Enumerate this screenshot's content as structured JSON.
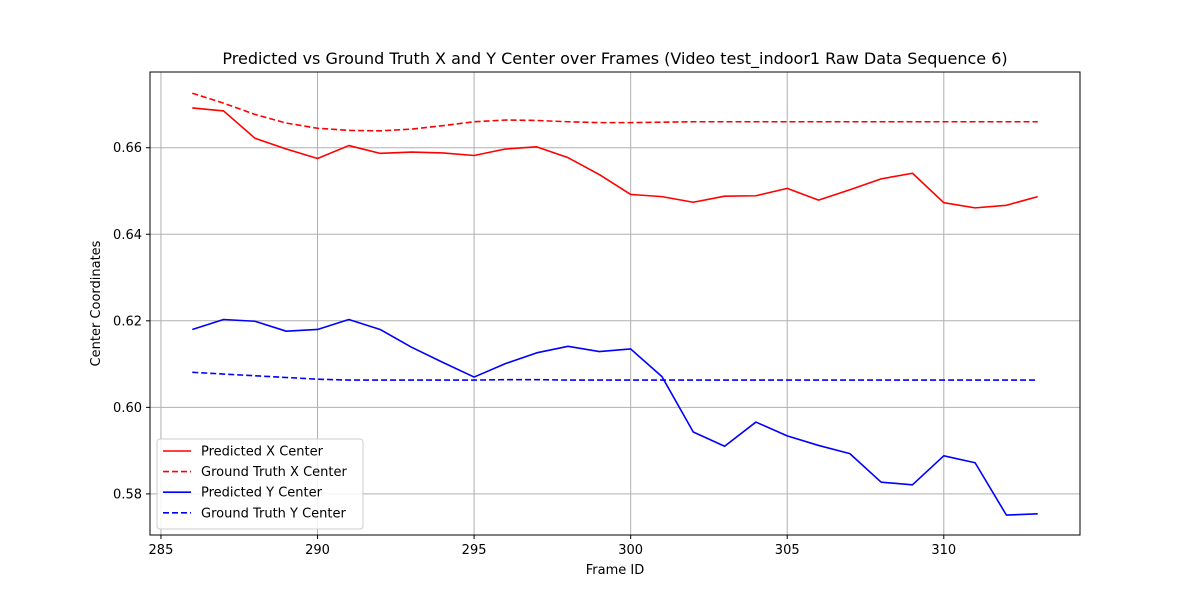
{
  "chart_data": {
    "type": "line",
    "title": "Predicted vs Ground Truth X and Y Center over Frames (Video test_indoor1 Raw Data Sequence 6)",
    "xlabel": "Frame ID",
    "ylabel": "Center Coordinates",
    "xlim": [
      284.65,
      314.35
    ],
    "ylim": [
      0.5705,
      0.6775
    ],
    "xticks": [
      285,
      290,
      295,
      300,
      305,
      310
    ],
    "yticks": [
      0.58,
      0.6,
      0.62,
      0.64,
      0.66
    ],
    "xtick_labels": [
      "285",
      "290",
      "295",
      "300",
      "305",
      "310"
    ],
    "ytick_labels": [
      "0.58",
      "0.60",
      "0.62",
      "0.64",
      "0.66"
    ],
    "grid": true,
    "legend_position": "lower-left",
    "x": [
      286,
      287,
      288,
      289,
      290,
      291,
      292,
      293,
      294,
      295,
      296,
      297,
      298,
      299,
      300,
      301,
      302,
      303,
      304,
      305,
      306,
      307,
      308,
      309,
      310,
      311,
      312,
      313
    ],
    "series": [
      {
        "name": "Predicted X Center",
        "color": "#ff0000",
        "dash": "solid",
        "values": [
          0.6692,
          0.6685,
          0.6622,
          0.6597,
          0.6575,
          0.6605,
          0.6587,
          0.659,
          0.6588,
          0.6582,
          0.6597,
          0.6602,
          0.6577,
          0.6538,
          0.6492,
          0.6487,
          0.6474,
          0.6488,
          0.6489,
          0.6506,
          0.6479,
          0.6503,
          0.6528,
          0.6541,
          0.6473,
          0.6461,
          0.6467,
          0.6487
        ]
      },
      {
        "name": "Ground Truth X Center",
        "color": "#ff0000",
        "dash": "dashed",
        "values": [
          0.6726,
          0.6703,
          0.6677,
          0.6657,
          0.6645,
          0.664,
          0.6639,
          0.6643,
          0.6651,
          0.666,
          0.6664,
          0.6663,
          0.666,
          0.6658,
          0.6658,
          0.6659,
          0.666,
          0.666,
          0.666,
          0.666,
          0.666,
          0.666,
          0.666,
          0.666,
          0.666,
          0.666,
          0.666,
          0.666
        ]
      },
      {
        "name": "Predicted Y Center",
        "color": "#0000ff",
        "dash": "solid",
        "values": [
          0.618,
          0.6203,
          0.6199,
          0.6176,
          0.618,
          0.6203,
          0.618,
          0.6139,
          0.6104,
          0.607,
          0.6101,
          0.6126,
          0.6141,
          0.6129,
          0.6135,
          0.6071,
          0.5943,
          0.591,
          0.5966,
          0.5934,
          0.5912,
          0.5893,
          0.5827,
          0.5821,
          0.5888,
          0.5872,
          0.5751,
          0.5754
        ]
      },
      {
        "name": "Ground Truth Y Center",
        "color": "#0000ff",
        "dash": "dashed",
        "values": [
          0.6081,
          0.6077,
          0.6073,
          0.6069,
          0.6065,
          0.6063,
          0.6063,
          0.6063,
          0.6063,
          0.6063,
          0.6064,
          0.6064,
          0.6063,
          0.6063,
          0.6063,
          0.6063,
          0.6063,
          0.6063,
          0.6063,
          0.6063,
          0.6063,
          0.6063,
          0.6063,
          0.6063,
          0.6063,
          0.6063,
          0.6063,
          0.6063
        ]
      }
    ]
  }
}
